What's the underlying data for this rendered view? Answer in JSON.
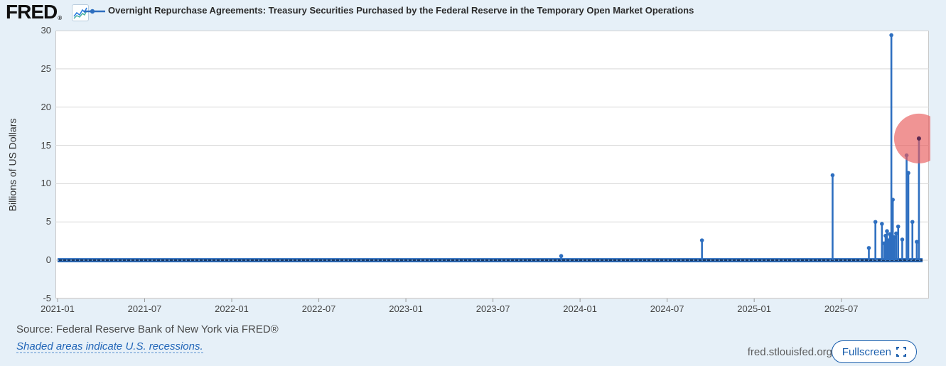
{
  "header": {
    "logo_text": "FRED",
    "logo_reg": "®",
    "title": "Overnight Repurchase Agreements: Treasury Securities Purchased by the Federal Reserve in the Temporary Open Market Operations"
  },
  "footer": {
    "source": "Source: Federal Reserve Bank of New York via FRED®",
    "recession_note": "Shaded areas indicate U.S. recessions.",
    "watermark": "fred.stlouisfed.org",
    "fullscreen_label": "Fullscreen"
  },
  "icons": {
    "fred_graph_icon": "line-chart-icon",
    "legend_marker": "blue-line-with-dot",
    "fullscreen_icon": "expand-corners-icon"
  },
  "colors": {
    "page_bg": "#e6f0f8",
    "plot_bg": "#ffffff",
    "grid": "#d9d9d9",
    "border": "#c9c9c9",
    "series": "#2e6fc0",
    "series_core": "#17355e",
    "series_dash": "#7fb0e8",
    "highlight_circle": "#e85c5c",
    "link": "#2266b8",
    "button": "#1b5fad"
  },
  "chart_data": {
    "type": "line",
    "title": "Overnight Repurchase Agreements: Treasury Securities Purchased by the Federal Reserve in the Temporary Open Market Operations",
    "xlabel": "",
    "ylabel": "Billions of US Dollars",
    "ylim": [
      -5,
      30
    ],
    "yticks": [
      30,
      25,
      20,
      15,
      10,
      5,
      0,
      -5
    ],
    "grid": "horizontal-only",
    "legend_position": "top-left-header",
    "xlim_months_from_2021_01": [
      0,
      60
    ],
    "xticks": [
      {
        "label": "2021-01",
        "m": 0
      },
      {
        "label": "2021-07",
        "m": 6
      },
      {
        "label": "2022-01",
        "m": 12
      },
      {
        "label": "2022-07",
        "m": 18
      },
      {
        "label": "2023-01",
        "m": 24
      },
      {
        "label": "2023-07",
        "m": 30
      },
      {
        "label": "2024-01",
        "m": 36
      },
      {
        "label": "2024-07",
        "m": 42
      },
      {
        "label": "2025-01",
        "m": 48
      },
      {
        "label": "2025-07",
        "m": 54
      }
    ],
    "baseline": {
      "value": 0,
      "start_m": 0,
      "end_m": 59.6,
      "note": "series sits at ~0 for nearly all daily observations, drawn as a thick dotted dark-blue band"
    },
    "spikes": [
      {
        "date": "2023-11",
        "m": 34.7,
        "v": 0.55
      },
      {
        "date": "2024-09-30",
        "m": 44.4,
        "v": 2.6
      },
      {
        "date": "2025-06-30",
        "m": 53.4,
        "v": 11.1
      },
      {
        "date": "2025-09",
        "m": 55.9,
        "v": 1.6
      },
      {
        "date": "2025-09",
        "m": 56.35,
        "v": 5.0
      },
      {
        "date": "2025-09-30",
        "m": 56.8,
        "v": 4.75
      },
      {
        "date": "2025-10",
        "m": 56.95,
        "v": 2.2
      },
      {
        "date": "2025-10",
        "m": 57.05,
        "v": 3.2
      },
      {
        "date": "2025-10",
        "m": 57.15,
        "v": 3.8
      },
      {
        "date": "2025-10",
        "m": 57.25,
        "v": 2.6
      },
      {
        "date": "2025-10",
        "m": 57.35,
        "v": 3.4
      },
      {
        "date": "2025-10-31",
        "m": 57.45,
        "v": 29.4
      },
      {
        "date": "2025-11",
        "m": 57.55,
        "v": 7.9
      },
      {
        "date": "2025-11",
        "m": 57.65,
        "v": 3.0
      },
      {
        "date": "2025-11",
        "m": 57.78,
        "v": 3.5
      },
      {
        "date": "2025-11",
        "m": 57.92,
        "v": 4.4
      },
      {
        "date": "2025-11",
        "m": 58.2,
        "v": 2.7
      },
      {
        "date": "2025-11",
        "m": 58.5,
        "v": 13.7
      },
      {
        "date": "2025-11",
        "m": 58.62,
        "v": 11.4
      },
      {
        "date": "2025-11",
        "m": 58.9,
        "v": 5.0
      },
      {
        "date": "2025-12",
        "m": 59.2,
        "v": 2.4
      },
      {
        "date": "2025-12-01",
        "m": 59.35,
        "v": 15.9
      }
    ],
    "latest_point": {
      "date": "2025-12-01",
      "v": 15.9,
      "highlighted_with_red_circle": true
    },
    "highlight": {
      "m": 59.35,
      "v": 15.9,
      "radius_px": 35
    }
  }
}
